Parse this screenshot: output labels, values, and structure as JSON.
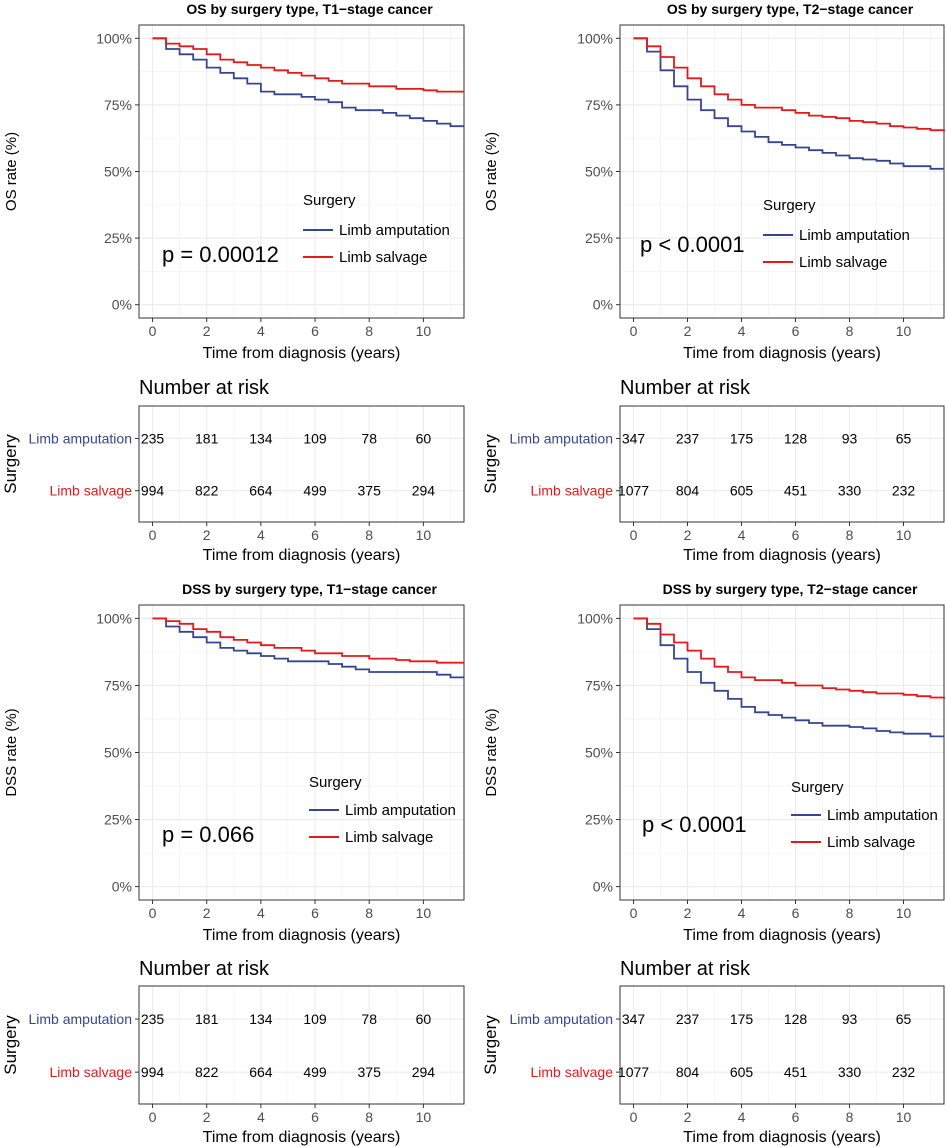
{
  "colors": {
    "amputation": "#34468f",
    "salvage": "#e31a1c",
    "grid": "#ebebeb",
    "axis": "#333333",
    "tick_text": "#4d4d4d"
  },
  "common": {
    "xlabel": "Time from diagnosis (years)",
    "x_ticks": [
      0,
      2,
      4,
      6,
      8,
      10
    ],
    "xlim": [
      -0.5,
      11.5
    ],
    "y_ticks": [
      0,
      25,
      50,
      75,
      100
    ],
    "y_tick_labels": [
      "0%",
      "25%",
      "50%",
      "75%",
      "100%"
    ],
    "ylim": [
      -5,
      105
    ],
    "legend_title": "Surgery",
    "legend_labels": [
      "Limb amputation",
      "Limb salvage"
    ],
    "risk_title": "Number at risk",
    "risk_ylabel": "Surgery"
  },
  "chart_data": [
    {
      "type": "line",
      "title": "OS by surgery type, T1−stage cancer",
      "ylabel": "OS rate (%)",
      "xlabel": "Time from diagnosis (years)",
      "p_value": "p = 0.00012",
      "series": [
        {
          "name": "Limb amputation",
          "x": [
            0,
            0.5,
            1,
            1.5,
            2,
            2.5,
            3,
            3.5,
            4,
            4.5,
            5,
            5.5,
            6,
            6.5,
            7,
            7.5,
            8,
            8.5,
            9,
            9.5,
            10,
            10.5,
            11,
            11.5
          ],
          "y": [
            100,
            96,
            94,
            92,
            89,
            87,
            85,
            83,
            80,
            79,
            79,
            78,
            77,
            76,
            74,
            73,
            73,
            72,
            71,
            70,
            69,
            68,
            67,
            67
          ]
        },
        {
          "name": "Limb salvage",
          "x": [
            0,
            0.5,
            1,
            1.5,
            2,
            2.5,
            3,
            3.5,
            4,
            4.5,
            5,
            5.5,
            6,
            6.5,
            7,
            7.5,
            8,
            8.5,
            9,
            9.5,
            10,
            10.5,
            11,
            11.5
          ],
          "y": [
            100,
            98,
            97,
            96,
            94,
            92,
            91,
            90,
            89,
            88,
            87,
            86,
            85,
            84,
            83,
            83,
            82,
            82,
            81,
            81,
            80.5,
            80,
            80,
            80
          ]
        }
      ],
      "risk_table": {
        "time_points": [
          0,
          2,
          4,
          6,
          8,
          10
        ],
        "rows": [
          {
            "name": "Limb amputation",
            "counts": [
              "235",
              "181",
              "134",
              "109",
              "78",
              "60"
            ]
          },
          {
            "name": "Limb salvage",
            "counts": [
              "994",
              "822",
              "664",
              "499",
              "375",
              "294"
            ]
          }
        ]
      }
    },
    {
      "type": "line",
      "title": "OS by surgery type, T2−stage cancer",
      "ylabel": "OS rate (%)",
      "xlabel": "Time from diagnosis (years)",
      "p_value": "p < 0.0001",
      "series": [
        {
          "name": "Limb amputation",
          "x": [
            0,
            0.5,
            1,
            1.5,
            2,
            2.5,
            3,
            3.5,
            4,
            4.5,
            5,
            5.5,
            6,
            6.5,
            7,
            7.5,
            8,
            8.5,
            9,
            9.5,
            10,
            10.5,
            11,
            11.5
          ],
          "y": [
            100,
            95,
            88,
            82,
            77,
            73,
            70,
            67,
            65,
            63,
            61,
            60,
            59,
            58,
            57,
            56,
            55,
            54.5,
            54,
            53,
            52,
            52,
            51,
            51
          ]
        },
        {
          "name": "Limb salvage",
          "x": [
            0,
            0.5,
            1,
            1.5,
            2,
            2.5,
            3,
            3.5,
            4,
            4.5,
            5,
            5.5,
            6,
            6.5,
            7,
            7.5,
            8,
            8.5,
            9,
            9.5,
            10,
            10.5,
            11,
            11.5
          ],
          "y": [
            100,
            97,
            93,
            89,
            85,
            82,
            79,
            77,
            75,
            74,
            74,
            73,
            72,
            71,
            70.5,
            70,
            69,
            68.5,
            68,
            67,
            66.5,
            66,
            65.5,
            65
          ]
        }
      ],
      "risk_table": {
        "time_points": [
          0,
          2,
          4,
          6,
          8,
          10
        ],
        "rows": [
          {
            "name": "Limb amputation",
            "counts": [
              "347",
              "237",
              "175",
              "128",
              "93",
              "65"
            ]
          },
          {
            "name": "Limb salvage",
            "counts": [
              "1077",
              "804",
              "605",
              "451",
              "330",
              "232"
            ]
          }
        ]
      }
    },
    {
      "type": "line",
      "title": "DSS by surgery type, T1−stage cancer",
      "ylabel": "DSS rate (%)",
      "xlabel": "Time from diagnosis (years)",
      "p_value": "p = 0.066",
      "series": [
        {
          "name": "Limb amputation",
          "x": [
            0,
            0.5,
            1,
            1.5,
            2,
            2.5,
            3,
            3.5,
            4,
            4.5,
            5,
            5.5,
            6,
            6.5,
            7,
            7.5,
            8,
            8.5,
            9,
            9.5,
            10,
            10.5,
            11,
            11.5
          ],
          "y": [
            100,
            97,
            95,
            93,
            91,
            89,
            88,
            87,
            86,
            85,
            84,
            84,
            84,
            83,
            82,
            81,
            80,
            80,
            80,
            80,
            80,
            79,
            78,
            78
          ]
        },
        {
          "name": "Limb salvage",
          "x": [
            0,
            0.5,
            1,
            1.5,
            2,
            2.5,
            3,
            3.5,
            4,
            4.5,
            5,
            5.5,
            6,
            6.5,
            7,
            7.5,
            8,
            8.5,
            9,
            9.5,
            10,
            10.5,
            11,
            11.5
          ],
          "y": [
            100,
            99,
            98,
            96,
            95,
            93,
            92,
            91,
            90,
            89,
            89,
            88,
            87,
            87,
            86,
            86,
            85,
            85,
            84.5,
            84,
            84,
            83.5,
            83.5,
            83.5
          ]
        }
      ],
      "risk_table": {
        "time_points": [
          0,
          2,
          4,
          6,
          8,
          10
        ],
        "rows": [
          {
            "name": "Limb amputation",
            "counts": [
              "235",
              "181",
              "134",
              "109",
              "78",
              "60"
            ]
          },
          {
            "name": "Limb salvage",
            "counts": [
              "994",
              "822",
              "664",
              "499",
              "375",
              "294"
            ]
          }
        ]
      }
    },
    {
      "type": "line",
      "title": "DSS by surgery type, T2−stage cancer",
      "ylabel": "DSS rate (%)",
      "xlabel": "Time from diagnosis (years)",
      "p_value": "p < 0.0001",
      "series": [
        {
          "name": "Limb amputation",
          "x": [
            0,
            0.5,
            1,
            1.5,
            2,
            2.5,
            3,
            3.5,
            4,
            4.5,
            5,
            5.5,
            6,
            6.5,
            7,
            7.5,
            8,
            8.5,
            9,
            9.5,
            10,
            10.5,
            11,
            11.5
          ],
          "y": [
            100,
            96,
            90,
            85,
            80,
            76,
            73,
            70,
            67,
            65,
            64,
            63,
            62,
            61,
            60,
            60,
            59.5,
            59,
            58,
            57.5,
            57,
            57,
            56,
            56
          ]
        },
        {
          "name": "Limb salvage",
          "x": [
            0,
            0.5,
            1,
            1.5,
            2,
            2.5,
            3,
            3.5,
            4,
            4.5,
            5,
            5.5,
            6,
            6.5,
            7,
            7.5,
            8,
            8.5,
            9,
            9.5,
            10,
            10.5,
            11,
            11.5
          ],
          "y": [
            100,
            98,
            94,
            91,
            88,
            85,
            82,
            80,
            78,
            77,
            77,
            76,
            75,
            75,
            74,
            73.5,
            73,
            72.5,
            72,
            72,
            71.5,
            71,
            70.5,
            70
          ]
        }
      ],
      "risk_table": {
        "time_points": [
          0,
          2,
          4,
          6,
          8,
          10
        ],
        "rows": [
          {
            "name": "Limb amputation",
            "counts": [
              "347",
              "237",
              "175",
              "128",
              "93",
              "65"
            ]
          },
          {
            "name": "Limb salvage",
            "counts": [
              "1077",
              "804",
              "605",
              "451",
              "330",
              "232"
            ]
          }
        ]
      }
    }
  ]
}
